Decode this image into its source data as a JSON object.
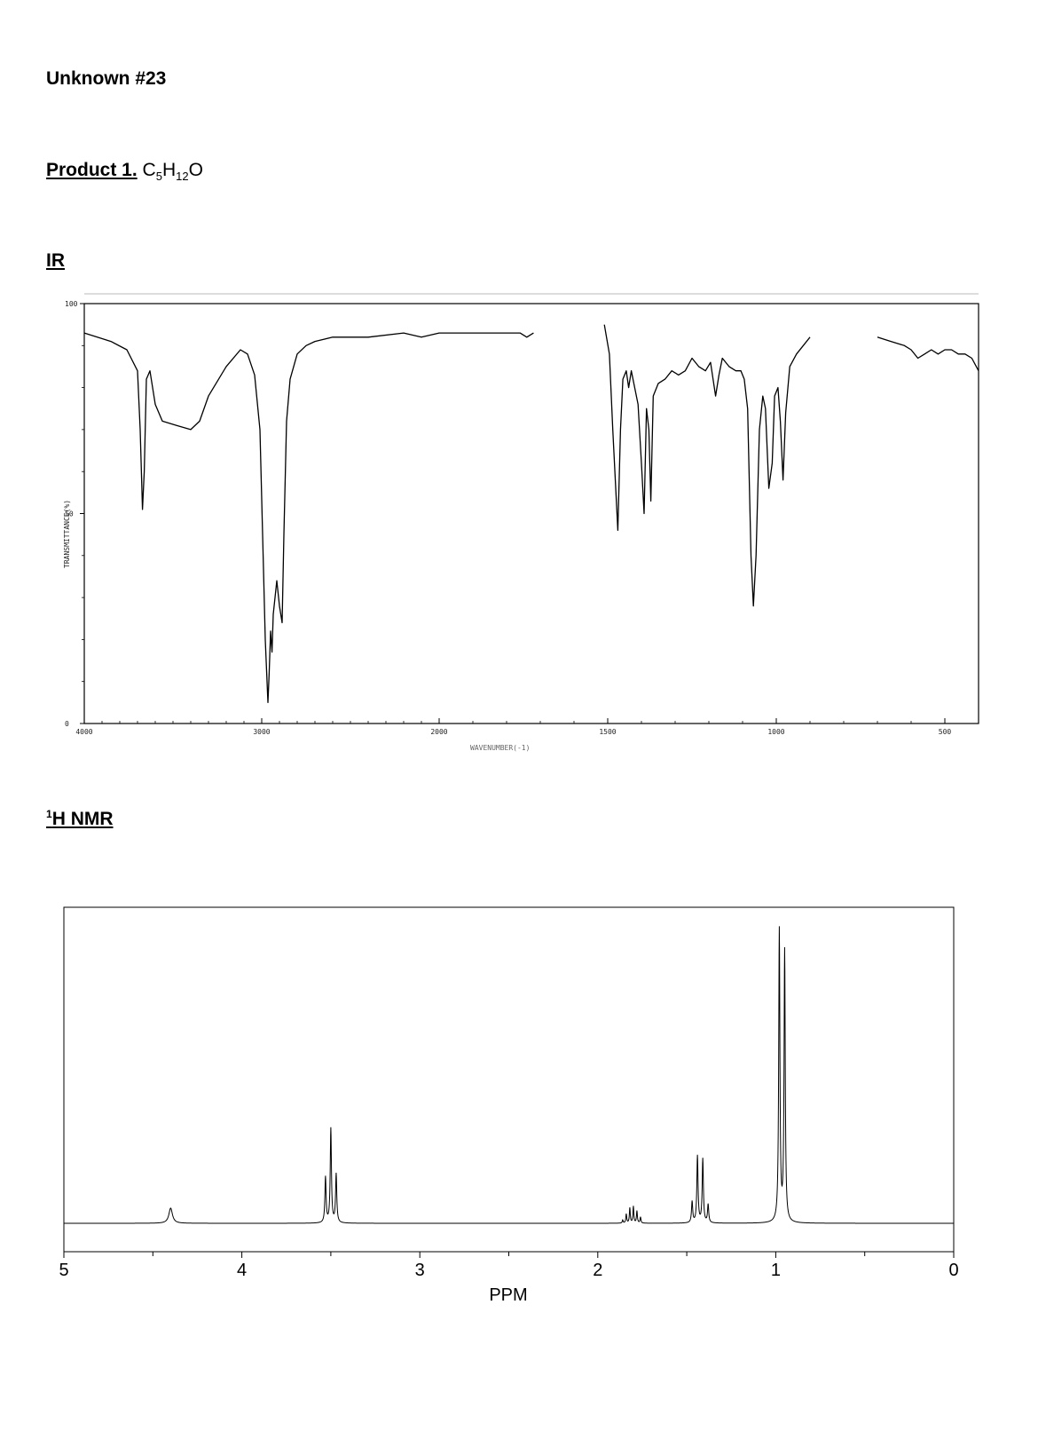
{
  "header": {
    "title": "Unknown #23",
    "product_label": "Product 1.",
    "formula": {
      "c": "C",
      "c_n": "5",
      "h": "H",
      "h_n": "12",
      "o": "O"
    },
    "ir_heading": "IR",
    "nmr_sup": "1",
    "nmr_heading": "H NMR"
  },
  "chart_data": [
    {
      "type": "line",
      "name_text": "IR",
      "xlabel": "WAVENUMBER(-1)",
      "ylabel": "TRANSMITTANCE(%)",
      "xlim": [
        4000,
        400
      ],
      "ylim": [
        0,
        100
      ],
      "x_ticks": [
        "4000",
        "3000",
        "2000",
        "1500",
        "1000",
        "500"
      ],
      "x_tick_values": [
        4000,
        3000,
        2000,
        1500,
        1000,
        500
      ],
      "y_ticks": [
        "0",
        "50",
        "100"
      ],
      "y_tick_values": [
        0,
        50,
        100
      ],
      "segments": [
        [
          [
            4000,
            93
          ],
          [
            3850,
            91
          ],
          [
            3760,
            89
          ],
          [
            3700,
            84
          ],
          [
            3685,
            70
          ],
          [
            3672,
            51
          ],
          [
            3662,
            60
          ],
          [
            3650,
            82
          ],
          [
            3630,
            84
          ],
          [
            3600,
            76
          ],
          [
            3560,
            72
          ],
          [
            3480,
            71
          ],
          [
            3400,
            70
          ],
          [
            3350,
            72
          ],
          [
            3300,
            78
          ],
          [
            3200,
            85
          ],
          [
            3120,
            89
          ],
          [
            3080,
            88
          ],
          [
            3040,
            83
          ],
          [
            3010,
            70
          ],
          [
            2995,
            45
          ],
          [
            2980,
            20
          ],
          [
            2965,
            5
          ],
          [
            2958,
            12
          ],
          [
            2950,
            22
          ],
          [
            2942,
            17
          ],
          [
            2935,
            26
          ],
          [
            2925,
            30
          ],
          [
            2915,
            34
          ],
          [
            2900,
            28
          ],
          [
            2885,
            24
          ],
          [
            2875,
            45
          ],
          [
            2860,
            72
          ],
          [
            2840,
            82
          ],
          [
            2800,
            88
          ],
          [
            2750,
            90
          ],
          [
            2700,
            91
          ],
          [
            2600,
            92
          ],
          [
            2400,
            92
          ],
          [
            2200,
            93
          ],
          [
            2100,
            92
          ],
          [
            2000,
            93
          ],
          [
            1900,
            93
          ],
          [
            1800,
            93
          ],
          [
            1760,
            93
          ],
          [
            1740,
            92
          ],
          [
            1720,
            93
          ]
        ],
        [
          [
            1510,
            95
          ],
          [
            1495,
            88
          ],
          [
            1485,
            70
          ],
          [
            1470,
            46
          ],
          [
            1462,
            70
          ],
          [
            1455,
            82
          ],
          [
            1445,
            84
          ],
          [
            1438,
            80
          ],
          [
            1430,
            84
          ],
          [
            1420,
            80
          ],
          [
            1410,
            76
          ],
          [
            1400,
            62
          ],
          [
            1392,
            50
          ],
          [
            1385,
            75
          ],
          [
            1378,
            70
          ],
          [
            1372,
            53
          ],
          [
            1365,
            78
          ],
          [
            1350,
            81
          ],
          [
            1330,
            82
          ],
          [
            1310,
            84
          ],
          [
            1290,
            83
          ],
          [
            1270,
            84
          ],
          [
            1250,
            87
          ],
          [
            1230,
            85
          ],
          [
            1210,
            84
          ],
          [
            1195,
            86
          ],
          [
            1180,
            78
          ],
          [
            1170,
            83
          ],
          [
            1160,
            87
          ],
          [
            1140,
            85
          ],
          [
            1120,
            84
          ],
          [
            1105,
            84
          ],
          [
            1095,
            82
          ],
          [
            1085,
            75
          ],
          [
            1075,
            40
          ],
          [
            1068,
            28
          ],
          [
            1060,
            40
          ],
          [
            1050,
            70
          ],
          [
            1040,
            78
          ],
          [
            1032,
            75
          ],
          [
            1022,
            56
          ],
          [
            1012,
            62
          ],
          [
            1005,
            78
          ],
          [
            995,
            80
          ],
          [
            988,
            72
          ],
          [
            980,
            58
          ],
          [
            972,
            74
          ],
          [
            960,
            85
          ],
          [
            940,
            88
          ],
          [
            920,
            90
          ],
          [
            900,
            92
          ]
        ],
        [
          [
            700,
            92
          ],
          [
            660,
            91
          ],
          [
            620,
            90
          ],
          [
            600,
            89
          ],
          [
            580,
            87
          ],
          [
            560,
            88
          ],
          [
            540,
            89
          ],
          [
            520,
            88
          ],
          [
            500,
            89
          ],
          [
            480,
            89
          ],
          [
            460,
            88
          ],
          [
            440,
            88
          ],
          [
            420,
            87
          ],
          [
            400,
            84
          ]
        ]
      ]
    },
    {
      "type": "line",
      "name_text": "¹H NMR",
      "xlabel": "PPM",
      "xlim": [
        5,
        0
      ],
      "x_ticks": [
        "5",
        "4",
        "3",
        "2",
        "1",
        "0"
      ],
      "x_tick_values": [
        5,
        4,
        3,
        2,
        1,
        0
      ],
      "peaks": [
        {
          "ppm": 4.4,
          "height": 0.05,
          "w": 0.012
        },
        {
          "ppm": 3.53,
          "height": 0.15,
          "w": 0.004
        },
        {
          "ppm": 3.5,
          "height": 0.31,
          "w": 0.004
        },
        {
          "ppm": 3.47,
          "height": 0.16,
          "w": 0.004
        },
        {
          "ppm": 1.86,
          "height": 0.01,
          "w": 0.003
        },
        {
          "ppm": 1.84,
          "height": 0.03,
          "w": 0.003
        },
        {
          "ppm": 1.82,
          "height": 0.05,
          "w": 0.003
        },
        {
          "ppm": 1.8,
          "height": 0.055,
          "w": 0.003
        },
        {
          "ppm": 1.78,
          "height": 0.04,
          "w": 0.003
        },
        {
          "ppm": 1.76,
          "height": 0.02,
          "w": 0.003
        },
        {
          "ppm": 1.47,
          "height": 0.07,
          "w": 0.004
        },
        {
          "ppm": 1.44,
          "height": 0.22,
          "w": 0.004
        },
        {
          "ppm": 1.41,
          "height": 0.21,
          "w": 0.004
        },
        {
          "ppm": 1.38,
          "height": 0.06,
          "w": 0.004
        },
        {
          "ppm": 0.98,
          "height": 0.96,
          "w": 0.004
        },
        {
          "ppm": 0.95,
          "height": 0.89,
          "w": 0.004
        }
      ]
    }
  ]
}
